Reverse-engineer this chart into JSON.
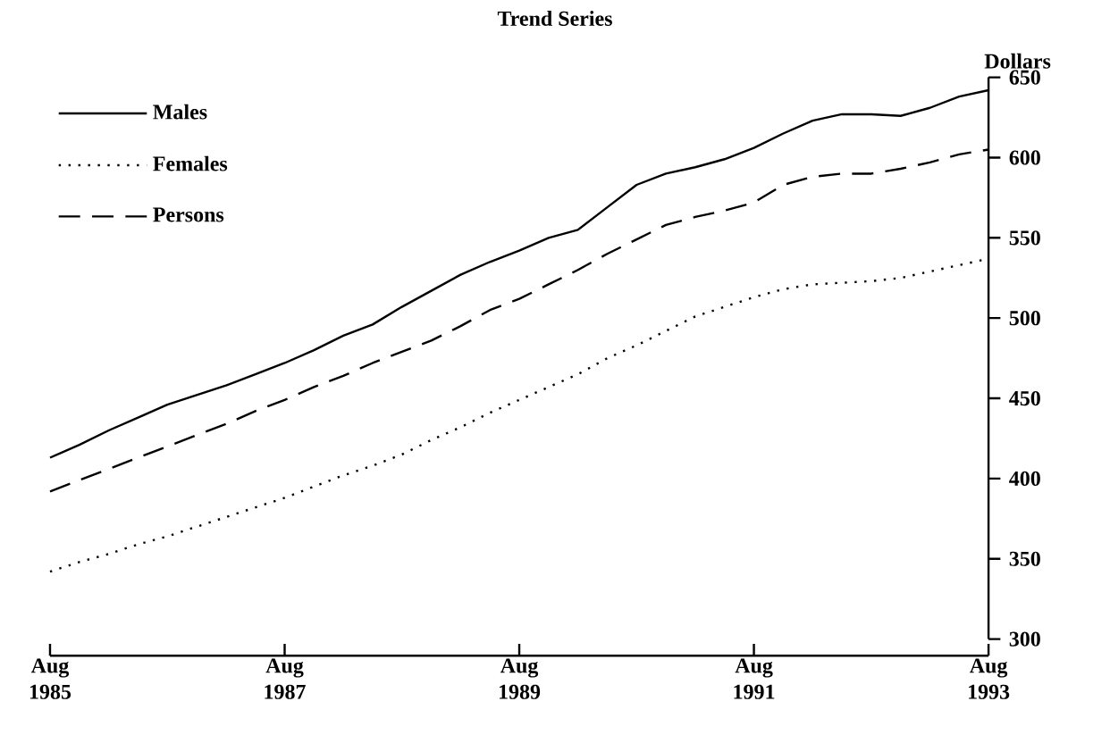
{
  "chart_data": {
    "type": "line",
    "title": "Trend Series",
    "ylabel": "Dollars",
    "x": [
      "1985-08",
      "1985-11",
      "1986-02",
      "1986-05",
      "1986-08",
      "1986-11",
      "1987-02",
      "1987-05",
      "1987-08",
      "1987-11",
      "1988-02",
      "1988-05",
      "1988-08",
      "1988-11",
      "1989-02",
      "1989-05",
      "1989-08",
      "1989-11",
      "1990-02",
      "1990-05",
      "1990-08",
      "1990-11",
      "1991-02",
      "1991-05",
      "1991-08",
      "1991-11",
      "1992-02",
      "1992-05",
      "1992-08",
      "1992-11",
      "1993-02",
      "1993-05",
      "1993-08"
    ],
    "series": [
      {
        "name": "Males",
        "color": "#000000",
        "line_style": "solid",
        "values": [
          413,
          421,
          430,
          438,
          446,
          452,
          458,
          465,
          472,
          480,
          489,
          496,
          507,
          517,
          527,
          535,
          542,
          550,
          555,
          569,
          583,
          590,
          594,
          599,
          606,
          615,
          623,
          627,
          627,
          626,
          631,
          638,
          642
        ]
      },
      {
        "name": "Females",
        "color": "#000000",
        "line_style": "dotted",
        "values": [
          342,
          348,
          353,
          359,
          364,
          370,
          376,
          382,
          388,
          395,
          402,
          408,
          415,
          424,
          432,
          441,
          449,
          457,
          465,
          475,
          483,
          492,
          501,
          507,
          513,
          518,
          521,
          522,
          523,
          525,
          529,
          533,
          537
        ]
      },
      {
        "name": "Persons",
        "color": "#000000",
        "line_style": "dashed",
        "values": [
          392,
          399,
          406,
          413,
          420,
          427,
          434,
          442,
          449,
          457,
          464,
          472,
          479,
          486,
          495,
          505,
          512,
          521,
          530,
          540,
          549,
          558,
          563,
          567,
          572,
          583,
          588,
          590,
          590,
          593,
          597,
          602,
          605
        ]
      }
    ],
    "xlim": [
      "1985-08",
      "1993-08"
    ],
    "xticks": [
      {
        "value": "1985-08",
        "label": "Aug 1985"
      },
      {
        "value": "1987-08",
        "label": "Aug 1987"
      },
      {
        "value": "1989-08",
        "label": "Aug 1989"
      },
      {
        "value": "1991-08",
        "label": "Aug 1991"
      },
      {
        "value": "1993-08",
        "label": "Aug 1993"
      }
    ],
    "ylim": [
      300,
      650
    ],
    "yticks": [
      300,
      350,
      400,
      450,
      500,
      550,
      600,
      650
    ],
    "grid": false,
    "legend": "top left",
    "marker": "none"
  }
}
